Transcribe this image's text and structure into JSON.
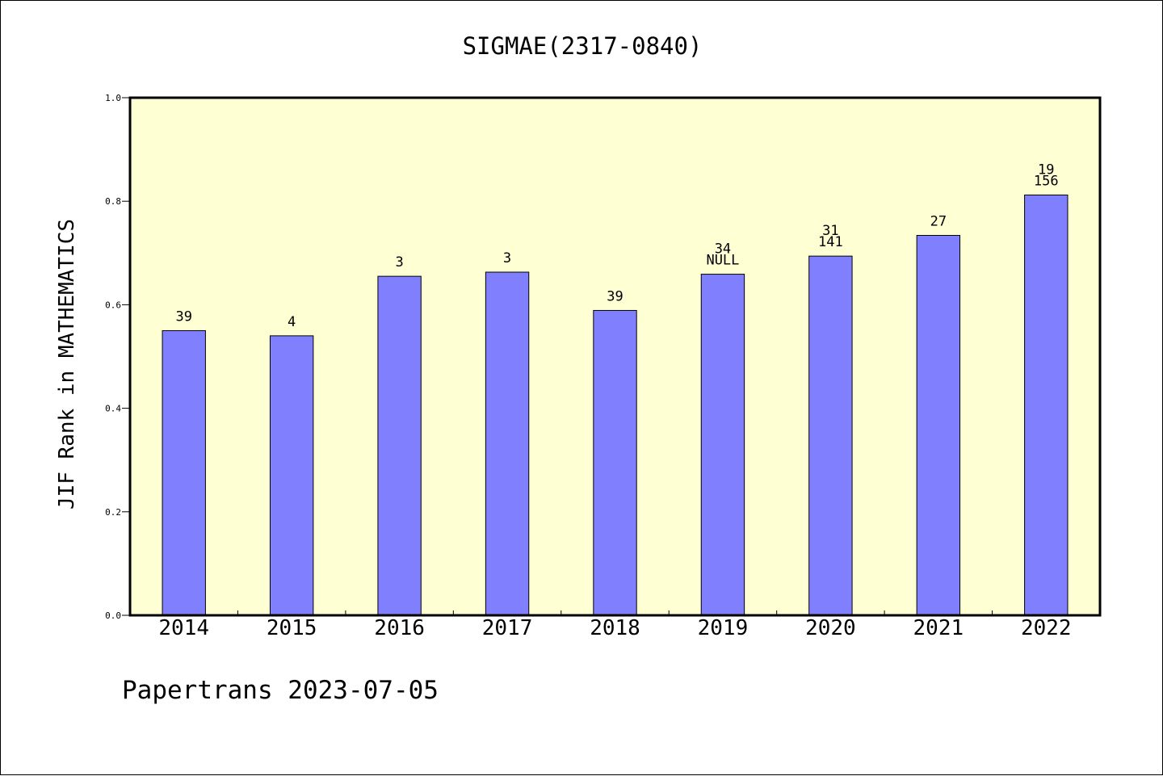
{
  "chart_data": {
    "type": "bar",
    "title": "SIGMAE(2317-0840)",
    "ylabel": "JIF Rank in MATHEMATICS",
    "xlabel": "",
    "ylim": [
      0,
      1.0
    ],
    "yticks": [
      "0.0",
      "0.2",
      "0.4",
      "0.6",
      "0.8",
      "1.0"
    ],
    "ytick_values": [
      0,
      0.2,
      0.4,
      0.6,
      0.8,
      1.0
    ],
    "grid": false,
    "categories": [
      "2014",
      "2015",
      "2016",
      "2017",
      "2018",
      "2019",
      "2020",
      "2021",
      "2022"
    ],
    "values": [
      0.55,
      0.54,
      0.655,
      0.663,
      0.589,
      0.659,
      0.694,
      0.734,
      0.812
    ],
    "labels": [
      [
        "39"
      ],
      [
        "4"
      ],
      [
        "3"
      ],
      [
        "3"
      ],
      [
        "39"
      ],
      [
        "34",
        "NULL"
      ],
      [
        "31",
        "141"
      ],
      [
        "27"
      ],
      [
        "19",
        "156"
      ]
    ],
    "colors": {
      "bar": "#8080ff",
      "plot_background": "#ffffd4",
      "axis": "#000000"
    }
  },
  "footer": {
    "text": "Papertrans 2023-07-05"
  }
}
